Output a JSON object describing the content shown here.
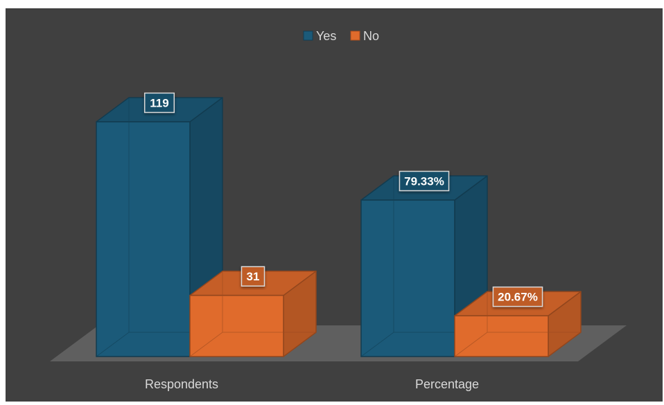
{
  "chart_data": {
    "type": "bar",
    "subtype": "3d-clustered-column",
    "categories": [
      "Respondents",
      "Percentage"
    ],
    "series": [
      {
        "name": "Yes",
        "values": [
          119,
          79.33
        ],
        "labels": [
          "119",
          "79.33%"
        ],
        "color": "#1b5a79"
      },
      {
        "name": "No",
        "values": [
          31,
          20.67
        ],
        "labels": [
          "31",
          "20.67%"
        ],
        "color": "#e06b2c"
      }
    ],
    "legend_position": "top",
    "grid": false,
    "value_axis_visible": false,
    "ylim": [
      0,
      126
    ],
    "colors": {
      "background": "#404040",
      "floor": "#5f5f5f",
      "text": "#d9d9d9",
      "label_text": "#ffffff"
    }
  }
}
